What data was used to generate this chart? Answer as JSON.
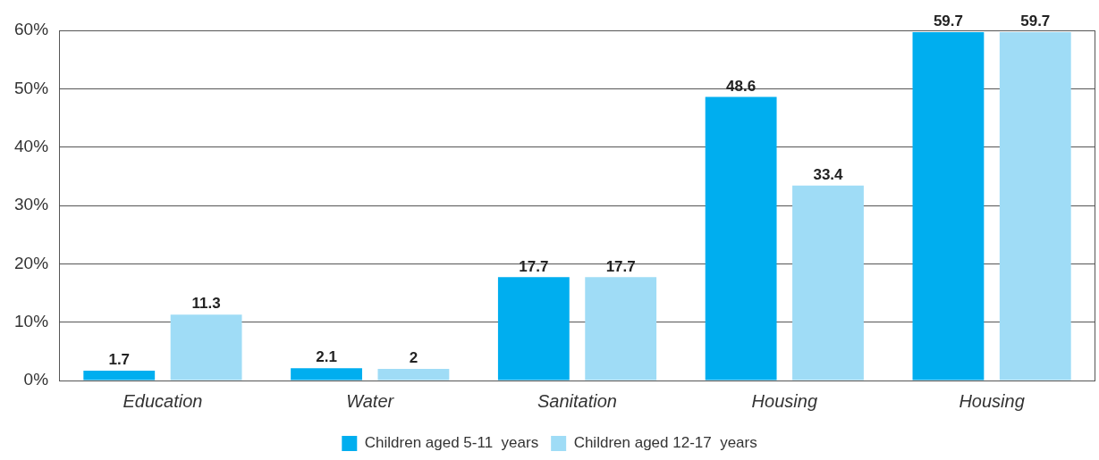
{
  "chart_data": {
    "type": "bar",
    "categories": [
      "Education",
      "Water",
      "Sanitation",
      "Housing",
      "Housing"
    ],
    "series": [
      {
        "name": "Children aged 5-11  years",
        "color": "#00aeef",
        "values": [
          1.7,
          2.1,
          17.7,
          48.6,
          59.7
        ]
      },
      {
        "name": "Children aged 12-17  years",
        "color": "#9fdcf6",
        "values": [
          11.3,
          2,
          17.7,
          33.4,
          59.7
        ]
      }
    ],
    "ylim": [
      0,
      60
    ],
    "yticks": [
      {
        "value": 0,
        "label": "0%"
      },
      {
        "value": 10,
        "label": "10%"
      },
      {
        "value": 20,
        "label": "20%"
      },
      {
        "value": 30,
        "label": "30%"
      },
      {
        "value": 40,
        "label": "40%"
      },
      {
        "value": 50,
        "label": "50%"
      },
      {
        "value": 60,
        "label": "60%"
      }
    ],
    "grid": "y",
    "legend": "bottom",
    "data_labels": true
  }
}
